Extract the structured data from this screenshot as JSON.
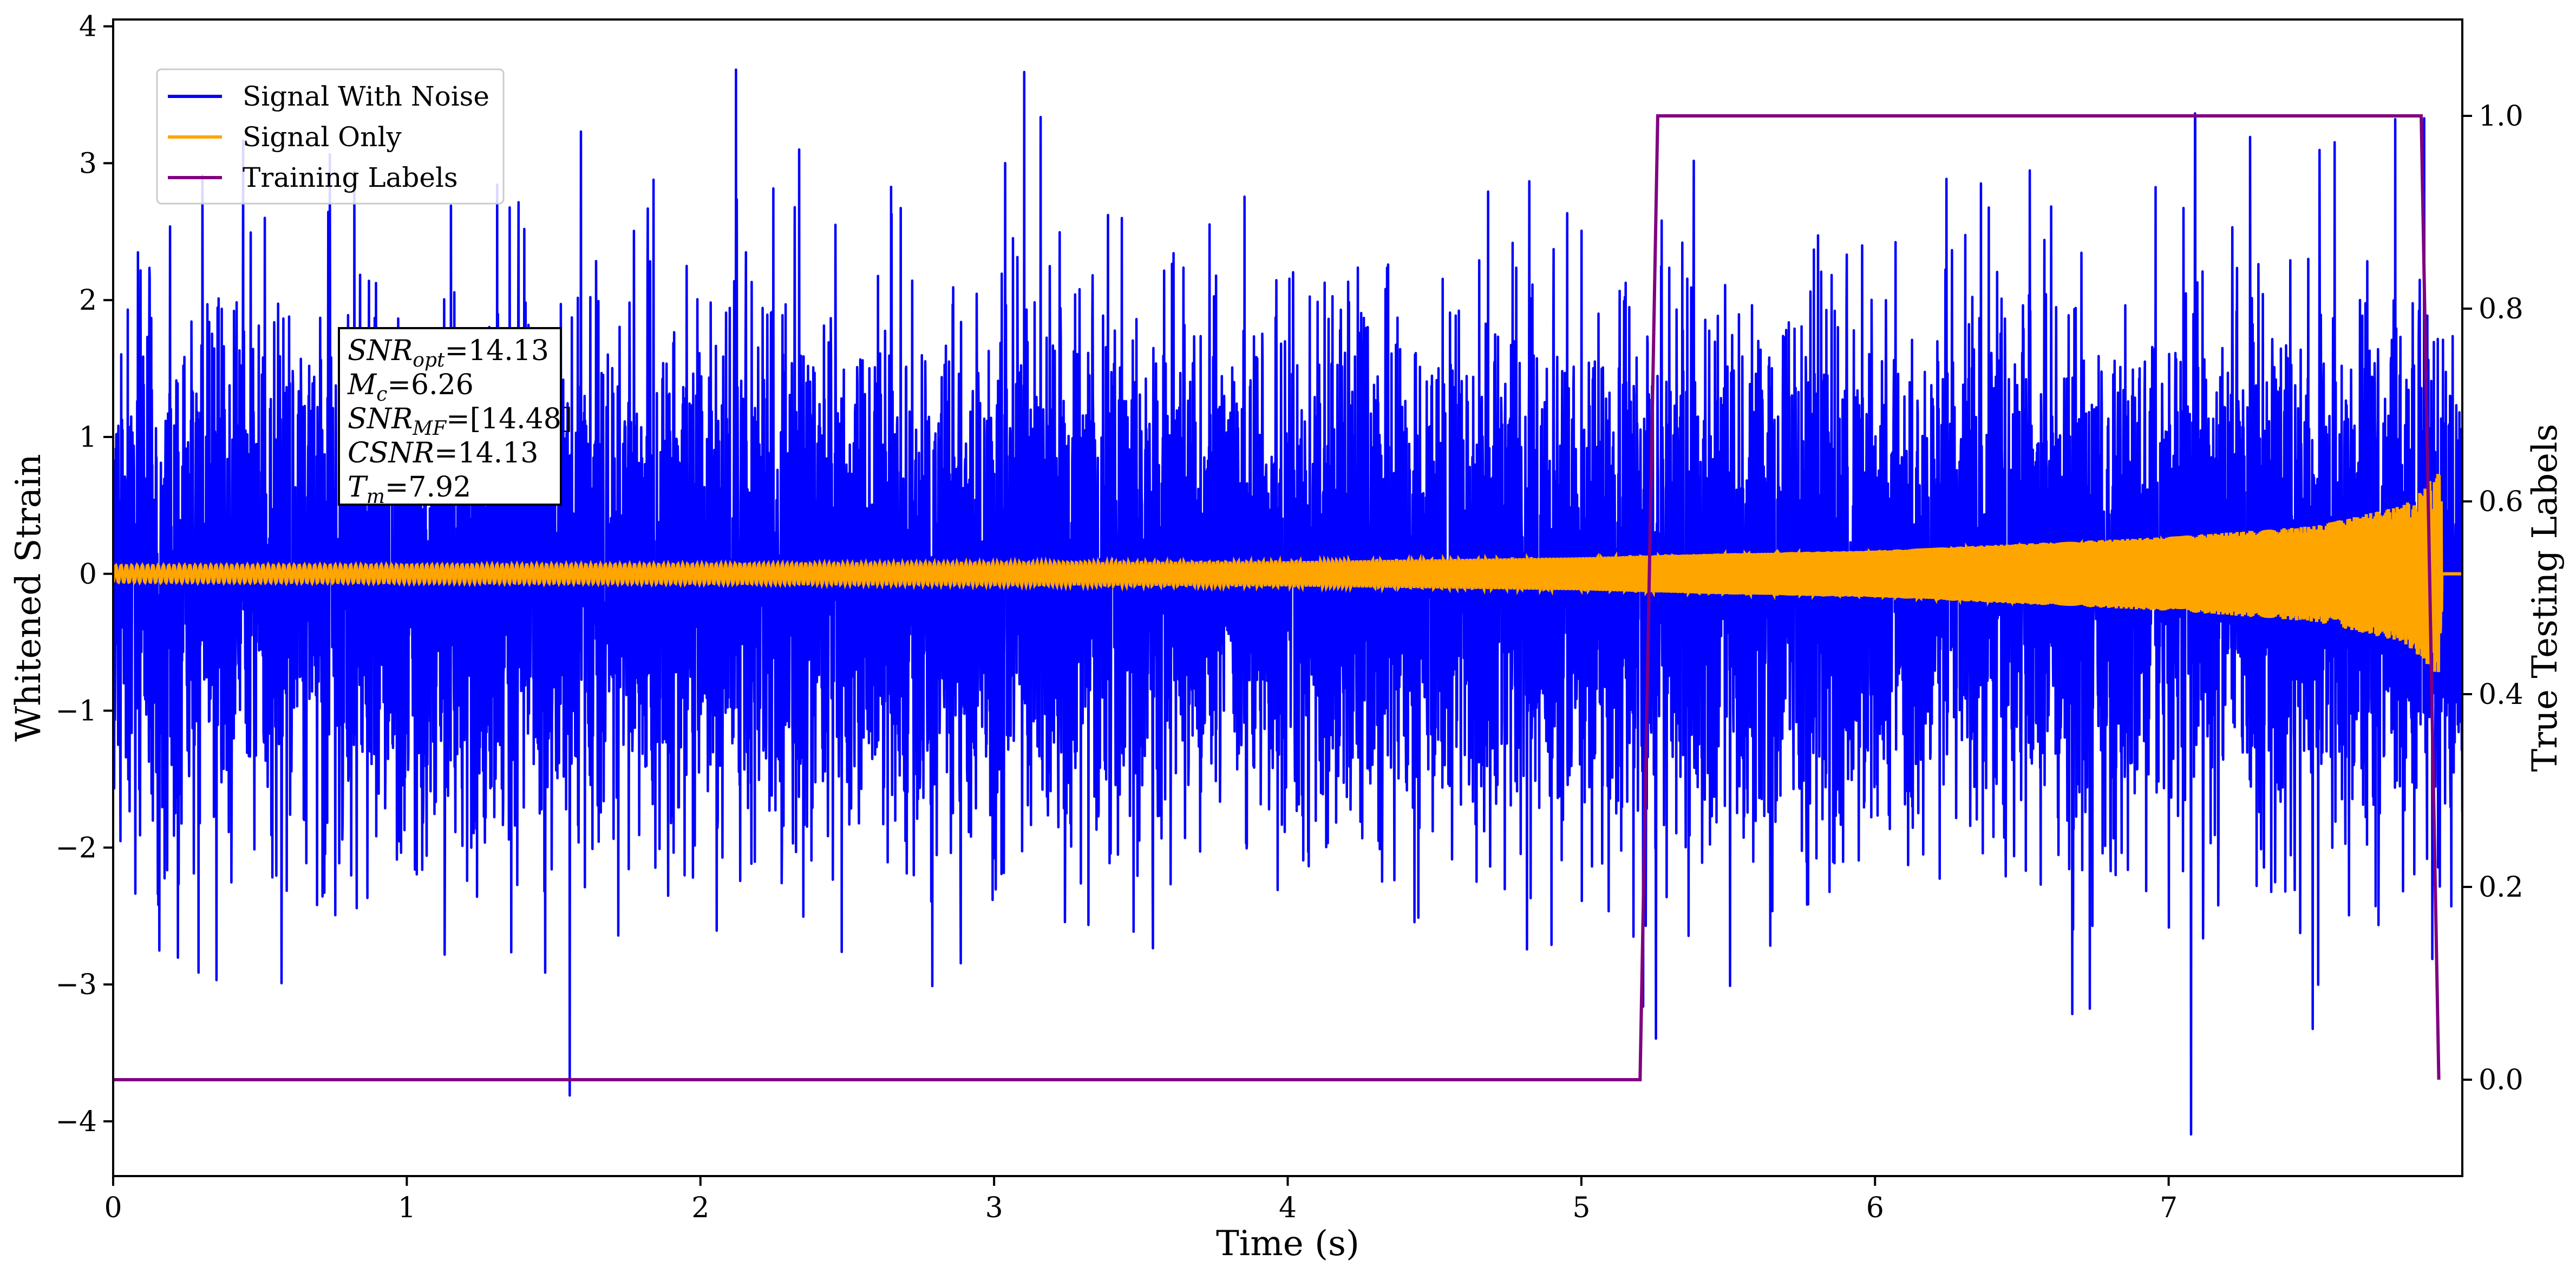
{
  "chart_data": {
    "type": "line",
    "xlabel": "Time (s)",
    "ylabel": "Whitened Strain",
    "y2label": "True Testing Labels",
    "xlim": [
      0,
      8
    ],
    "ylim": [
      -4.4,
      4.05
    ],
    "y2lim": [
      -0.1,
      1.1
    ],
    "xticks": [
      0,
      1,
      2,
      3,
      4,
      5,
      6,
      7
    ],
    "yticks": [
      -4,
      -3,
      -2,
      -1,
      0,
      1,
      2,
      3,
      4
    ],
    "y2ticks": [
      0.0,
      0.2,
      0.4,
      0.6,
      0.8,
      1.0
    ],
    "grid": false,
    "legend_position": "top-left",
    "series": [
      {
        "name": "Signal With Noise",
        "color": "#0000ff",
        "axis": "left",
        "description_values": {
          "std": 0.95,
          "max": 3.65,
          "min": -4.0
        }
      },
      {
        "name": "Signal Only",
        "color": "#ffa500",
        "axis": "left",
        "values": {
          "t": [
            0,
            1,
            2,
            3,
            4,
            5,
            5.5,
            6,
            6.5,
            7,
            7.5,
            7.8,
            7.9,
            7.92,
            7.95,
            8.0
          ],
          "amplitude": [
            0.06,
            0.065,
            0.07,
            0.08,
            0.09,
            0.12,
            0.15,
            0.17,
            0.22,
            0.27,
            0.35,
            0.5,
            0.7,
            0.75,
            0.0,
            0.0
          ]
        }
      },
      {
        "name": "Training Labels",
        "color": "#800080",
        "axis": "right",
        "x": [
          0,
          5.2,
          5.26,
          7.86,
          7.92
        ],
        "y": [
          0,
          0,
          1,
          1,
          0
        ]
      }
    ],
    "annotation": [
      {
        "main": "SNR",
        "sub": "opt",
        "value": "=14.13"
      },
      {
        "main": "M",
        "sub": "c",
        "value": "=6.26"
      },
      {
        "main": "SNR",
        "sub": "MF",
        "value": "=[14.48]"
      },
      {
        "main": "CSNR",
        "sub": "",
        "value": "=14.13"
      },
      {
        "main": "T",
        "sub": "m",
        "value": "=7.92"
      }
    ]
  }
}
